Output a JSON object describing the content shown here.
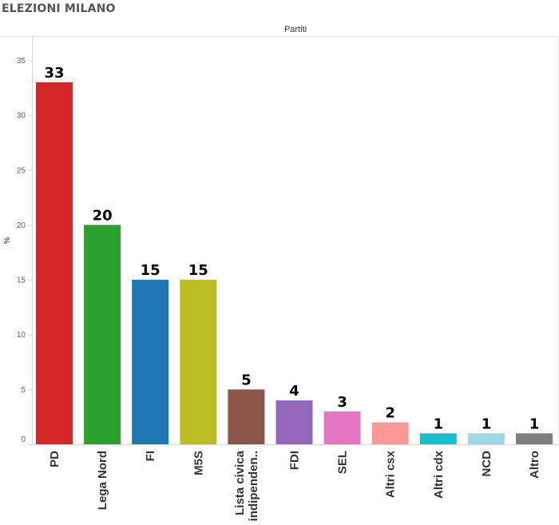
{
  "page_title": "ELEZIONI MILANO",
  "chart_data": {
    "type": "bar",
    "title": "ELEZIONI MILANO",
    "column_header": "Partiti",
    "ylabel": "%",
    "xlabel": "",
    "ylim": [
      0,
      37
    ],
    "yticks": [
      0,
      5,
      10,
      15,
      20,
      25,
      30,
      35
    ],
    "grid": false,
    "categories": [
      "PD",
      "Lega Nord",
      "FI",
      "M5S",
      "Lista civica indipenden..",
      "FDI",
      "SEL",
      "Altri csx",
      "Altri cdx",
      "NCD",
      "Altro"
    ],
    "category_label_lines": [
      [
        "PD"
      ],
      [
        "Lega Nord"
      ],
      [
        "FI"
      ],
      [
        "M5S"
      ],
      [
        "Lista civica",
        "indipenden.."
      ],
      [
        "FDI"
      ],
      [
        "SEL"
      ],
      [
        "Altri csx"
      ],
      [
        "Altri cdx"
      ],
      [
        "NCD"
      ],
      [
        "Altro"
      ]
    ],
    "values": [
      33,
      20,
      15,
      15,
      5,
      4,
      3,
      2,
      1,
      1,
      1
    ],
    "colors": [
      "#d62728",
      "#2ca02c",
      "#1f77b4",
      "#bcbd22",
      "#8c564b",
      "#9467bd",
      "#e377c2",
      "#ff9896",
      "#17becf",
      "#9edae5",
      "#7f7f7f"
    ]
  }
}
